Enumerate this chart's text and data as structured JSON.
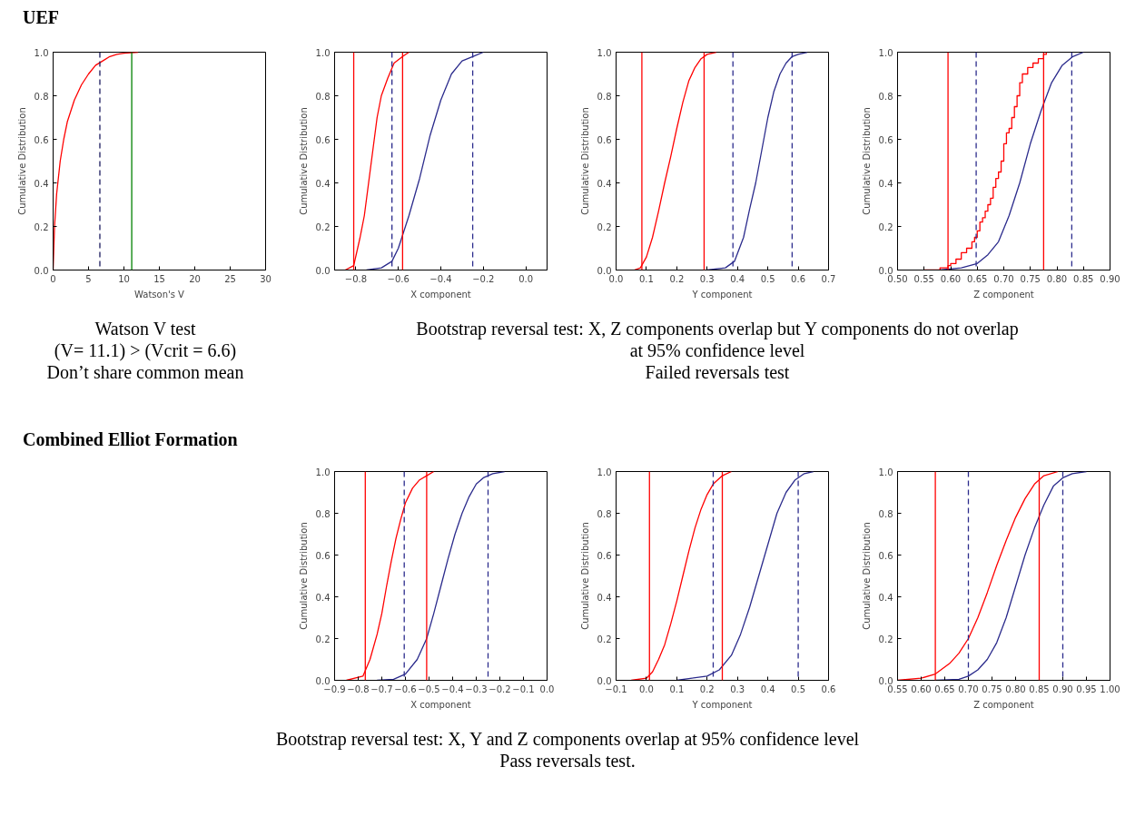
{
  "chart_data": [
    {
      "type": "other",
      "title": "UEF"
    },
    {
      "type": "line",
      "xlabel": "Watson's V",
      "ylabel": "Cumulative Distribution",
      "xlim": [
        0,
        30
      ],
      "ylim": [
        0,
        1
      ],
      "xticks": [
        0,
        5,
        10,
        15,
        20,
        25,
        30
      ],
      "yticks": [
        {
          "value": 0,
          "label": "0.0"
        },
        {
          "value": 0.2,
          "label": "0.2"
        },
        {
          "value": 0.4,
          "label": "0.4"
        },
        {
          "value": 0.6,
          "label": "0.6"
        },
        {
          "value": 0.8,
          "label": "0.8"
        },
        {
          "value": 1,
          "label": "1.0"
        }
      ],
      "series": [
        {
          "color": "#ff0000",
          "x": [
            0,
            0.2,
            0.5,
            1,
            1.5,
            2,
            3,
            4,
            5,
            6,
            7,
            8,
            9,
            10,
            12
          ],
          "values": [
            0,
            0.2,
            0.35,
            0.5,
            0.6,
            0.68,
            0.78,
            0.85,
            0.9,
            0.94,
            0.96,
            0.98,
            0.99,
            0.995,
            1
          ]
        }
      ],
      "ref_lines": [
        {
          "axis": "x",
          "value": 6.6,
          "color": "#1a1a5e",
          "line_style": "dashed"
        },
        {
          "axis": "x",
          "value": 11.1,
          "color": "#008000",
          "line_style": "solid"
        }
      ]
    },
    {
      "type": "line",
      "xlabel": "X component",
      "ylabel": "Cumulative Distribution",
      "xlim": [
        -0.9,
        0.1
      ],
      "ylim": [
        0,
        1
      ],
      "xticks": [
        {
          "value": -0.8,
          "label": "−0.8"
        },
        {
          "value": -0.6,
          "label": "−0.6"
        },
        {
          "value": -0.4,
          "label": "−0.4"
        },
        {
          "value": -0.2,
          "label": "−0.2"
        },
        {
          "value": 0,
          "label": "0.0"
        }
      ],
      "yticks": [
        {
          "value": 0,
          "label": "0.0"
        },
        {
          "value": 0.2,
          "label": "0.2"
        },
        {
          "value": 0.4,
          "label": "0.4"
        },
        {
          "value": 0.6,
          "label": "0.6"
        },
        {
          "value": 0.8,
          "label": "0.8"
        },
        {
          "value": 1,
          "label": "1.0"
        }
      ],
      "series": [
        {
          "color": "#ff0000",
          "x": [
            -0.85,
            -0.81,
            -0.78,
            -0.76,
            -0.74,
            -0.72,
            -0.7,
            -0.68,
            -0.65,
            -0.62,
            -0.58,
            -0.55
          ],
          "values": [
            0,
            0.02,
            0.15,
            0.25,
            0.4,
            0.55,
            0.7,
            0.8,
            0.88,
            0.95,
            0.98,
            1
          ]
        },
        {
          "color": "#2b2b8c",
          "x": [
            -0.75,
            -0.68,
            -0.63,
            -0.6,
            -0.55,
            -0.5,
            -0.45,
            -0.4,
            -0.35,
            -0.3,
            -0.25,
            -0.2
          ],
          "values": [
            0,
            0.01,
            0.04,
            0.1,
            0.25,
            0.42,
            0.62,
            0.78,
            0.9,
            0.96,
            0.98,
            1
          ]
        }
      ],
      "ref_lines": [
        {
          "axis": "x",
          "value": -0.81,
          "color": "#ff0000",
          "line_style": "solid"
        },
        {
          "axis": "x",
          "value": -0.58,
          "color": "#ff0000",
          "line_style": "solid"
        },
        {
          "axis": "x",
          "value": -0.63,
          "color": "#2b2b8c",
          "line_style": "dashed"
        },
        {
          "axis": "x",
          "value": -0.25,
          "color": "#2b2b8c",
          "line_style": "dashed"
        }
      ]
    },
    {
      "type": "line",
      "xlabel": "Y component",
      "ylabel": "Cumulative Distribution",
      "xlim": [
        0,
        0.7
      ],
      "ylim": [
        0,
        1
      ],
      "xticks": [
        {
          "value": 0,
          "label": "0.0"
        },
        0.1,
        0.2,
        0.3,
        0.4,
        0.5,
        0.6,
        0.7
      ],
      "yticks": [
        {
          "value": 0,
          "label": "0.0"
        },
        {
          "value": 0.2,
          "label": "0.2"
        },
        {
          "value": 0.4,
          "label": "0.4"
        },
        {
          "value": 0.6,
          "label": "0.6"
        },
        {
          "value": 0.8,
          "label": "0.8"
        },
        {
          "value": 1,
          "label": "1.0"
        }
      ],
      "series": [
        {
          "color": "#ff0000",
          "x": [
            0.06,
            0.08,
            0.1,
            0.12,
            0.14,
            0.16,
            0.18,
            0.2,
            0.22,
            0.24,
            0.26,
            0.28,
            0.3,
            0.33
          ],
          "values": [
            0,
            0.01,
            0.06,
            0.15,
            0.27,
            0.4,
            0.52,
            0.65,
            0.77,
            0.87,
            0.93,
            0.97,
            0.99,
            1
          ]
        },
        {
          "color": "#2b2b8c",
          "x": [
            0.3,
            0.36,
            0.39,
            0.42,
            0.44,
            0.46,
            0.48,
            0.5,
            0.52,
            0.54,
            0.56,
            0.58,
            0.6,
            0.63
          ],
          "values": [
            0,
            0.01,
            0.04,
            0.15,
            0.28,
            0.4,
            0.55,
            0.7,
            0.82,
            0.9,
            0.95,
            0.98,
            0.99,
            1
          ]
        }
      ],
      "ref_lines": [
        {
          "axis": "x",
          "value": 0.085,
          "color": "#ff0000",
          "line_style": "solid"
        },
        {
          "axis": "x",
          "value": 0.29,
          "color": "#ff0000",
          "line_style": "solid"
        },
        {
          "axis": "x",
          "value": 0.385,
          "color": "#2b2b8c",
          "line_style": "dashed"
        },
        {
          "axis": "x",
          "value": 0.58,
          "color": "#2b2b8c",
          "line_style": "dashed"
        }
      ]
    },
    {
      "type": "line",
      "xlabel": "Z component",
      "ylabel": "Cumulative Distribution",
      "xlim": [
        0.5,
        0.9
      ],
      "ylim": [
        0,
        1
      ],
      "xticks": [
        {
          "value": 0.5,
          "label": "0.50"
        },
        0.55,
        {
          "value": 0.6,
          "label": "0.60"
        },
        0.65,
        {
          "value": 0.7,
          "label": "0.70"
        },
        0.75,
        {
          "value": 0.8,
          "label": "0.80"
        },
        0.85,
        {
          "value": 0.9,
          "label": "0.90"
        }
      ],
      "yticks": [
        {
          "value": 0,
          "label": "0.0"
        },
        {
          "value": 0.2,
          "label": "0.2"
        },
        {
          "value": 0.4,
          "label": "0.4"
        },
        {
          "value": 0.6,
          "label": "0.6"
        },
        {
          "value": 0.8,
          "label": "0.8"
        },
        {
          "value": 1,
          "label": "1.0"
        }
      ],
      "series": [
        {
          "type": "step",
          "color": "#ff0000",
          "x": [
            0.55,
            0.58,
            0.595,
            0.6,
            0.61,
            0.62,
            0.63,
            0.64,
            0.645,
            0.65,
            0.655,
            0.66,
            0.665,
            0.67,
            0.675,
            0.68,
            0.685,
            0.69,
            0.695,
            0.7,
            0.705,
            0.71,
            0.715,
            0.72,
            0.725,
            0.73,
            0.735,
            0.745,
            0.755,
            0.765,
            0.775,
            0.78
          ],
          "values": [
            0,
            0.01,
            0.02,
            0.03,
            0.05,
            0.08,
            0.1,
            0.13,
            0.15,
            0.18,
            0.22,
            0.24,
            0.27,
            0.3,
            0.33,
            0.38,
            0.42,
            0.45,
            0.5,
            0.58,
            0.63,
            0.65,
            0.7,
            0.75,
            0.8,
            0.86,
            0.9,
            0.93,
            0.95,
            0.97,
            0.99,
            1
          ]
        },
        {
          "color": "#2b2b8c",
          "x": [
            0.58,
            0.62,
            0.65,
            0.67,
            0.69,
            0.71,
            0.73,
            0.75,
            0.77,
            0.79,
            0.81,
            0.83,
            0.85
          ],
          "values": [
            0,
            0.01,
            0.03,
            0.07,
            0.13,
            0.25,
            0.4,
            0.58,
            0.73,
            0.86,
            0.94,
            0.98,
            1
          ]
        }
      ],
      "ref_lines": [
        {
          "axis": "x",
          "value": 0.595,
          "color": "#ff0000",
          "line_style": "solid"
        },
        {
          "axis": "x",
          "value": 0.775,
          "color": "#ff0000",
          "line_style": "solid"
        },
        {
          "axis": "x",
          "value": 0.648,
          "color": "#2b2b8c",
          "line_style": "dashed"
        },
        {
          "axis": "x",
          "value": 0.828,
          "color": "#2b2b8c",
          "line_style": "dashed"
        }
      ]
    },
    {
      "type": "other",
      "annotations": [
        "Watson V test",
        "(V= 11.1) > (Vcrit = 6.6)",
        "Don’t share common mean"
      ]
    },
    {
      "type": "other",
      "annotations": [
        "Bootstrap reversal test: X, Z components overlap but Y components do not overlap",
        "at 95% confidence level",
        "Failed reversals test"
      ]
    },
    {
      "type": "other",
      "title": "Combined Elliot Formation"
    },
    {
      "type": "line",
      "xlabel": "X component",
      "ylabel": "Cumulative Distribution",
      "xlim": [
        -0.9,
        0
      ],
      "ylim": [
        0,
        1
      ],
      "xticks": [
        {
          "value": -0.9,
          "label": "−0.9"
        },
        {
          "value": -0.8,
          "label": "−0.8"
        },
        {
          "value": -0.7,
          "label": "−0.7"
        },
        {
          "value": -0.6,
          "label": "−0.6"
        },
        {
          "value": -0.5,
          "label": "−0.5"
        },
        {
          "value": -0.4,
          "label": "−0.4"
        },
        {
          "value": -0.3,
          "label": "−0.3"
        },
        {
          "value": -0.2,
          "label": "−0.2"
        },
        {
          "value": -0.1,
          "label": "−0.1"
        },
        {
          "value": 0,
          "label": "0.0"
        }
      ],
      "yticks": [
        {
          "value": 0,
          "label": "0.0"
        },
        {
          "value": 0.2,
          "label": "0.2"
        },
        {
          "value": 0.4,
          "label": "0.4"
        },
        {
          "value": 0.6,
          "label": "0.6"
        },
        {
          "value": 0.8,
          "label": "0.8"
        },
        {
          "value": 1,
          "label": "1.0"
        }
      ],
      "series": [
        {
          "color": "#ff0000",
          "x": [
            -0.85,
            -0.78,
            -0.75,
            -0.72,
            -0.7,
            -0.68,
            -0.66,
            -0.64,
            -0.62,
            -0.6,
            -0.57,
            -0.54,
            -0.51,
            -0.48
          ],
          "values": [
            0,
            0.02,
            0.1,
            0.22,
            0.32,
            0.45,
            0.57,
            0.68,
            0.77,
            0.85,
            0.92,
            0.96,
            0.98,
            1
          ]
        },
        {
          "color": "#2b2b8c",
          "x": [
            -0.72,
            -0.65,
            -0.6,
            -0.55,
            -0.51,
            -0.48,
            -0.45,
            -0.42,
            -0.39,
            -0.36,
            -0.33,
            -0.3,
            -0.27,
            -0.23,
            -0.18
          ],
          "values": [
            0,
            0.005,
            0.03,
            0.1,
            0.2,
            0.32,
            0.45,
            0.58,
            0.7,
            0.8,
            0.88,
            0.94,
            0.97,
            0.99,
            1
          ]
        }
      ],
      "ref_lines": [
        {
          "axis": "x",
          "value": -0.77,
          "color": "#ff0000",
          "line_style": "solid"
        },
        {
          "axis": "x",
          "value": -0.51,
          "color": "#ff0000",
          "line_style": "solid"
        },
        {
          "axis": "x",
          "value": -0.605,
          "color": "#2b2b8c",
          "line_style": "dashed"
        },
        {
          "axis": "x",
          "value": -0.25,
          "color": "#2b2b8c",
          "line_style": "dashed"
        }
      ]
    },
    {
      "type": "line",
      "xlabel": "Y component",
      "ylabel": "Cumulative Distribution",
      "xlim": [
        -0.1,
        0.6
      ],
      "ylim": [
        0,
        1
      ],
      "xticks": [
        {
          "value": -0.1,
          "label": "−0.1"
        },
        {
          "value": 0,
          "label": "0.0"
        },
        0.1,
        0.2,
        0.3,
        0.4,
        0.5,
        0.6
      ],
      "yticks": [
        {
          "value": 0,
          "label": "0.0"
        },
        {
          "value": 0.2,
          "label": "0.2"
        },
        {
          "value": 0.4,
          "label": "0.4"
        },
        {
          "value": 0.6,
          "label": "0.6"
        },
        {
          "value": 0.8,
          "label": "0.8"
        },
        {
          "value": 1,
          "label": "1.0"
        }
      ],
      "series": [
        {
          "color": "#ff0000",
          "x": [
            -0.05,
            0,
            0.02,
            0.04,
            0.06,
            0.08,
            0.1,
            0.12,
            0.14,
            0.16,
            0.18,
            0.2,
            0.22,
            0.25,
            0.28
          ],
          "values": [
            0,
            0.01,
            0.04,
            0.1,
            0.17,
            0.27,
            0.38,
            0.5,
            0.62,
            0.73,
            0.82,
            0.89,
            0.94,
            0.98,
            1
          ]
        },
        {
          "color": "#2b2b8c",
          "x": [
            0.1,
            0.2,
            0.24,
            0.28,
            0.31,
            0.34,
            0.37,
            0.4,
            0.43,
            0.46,
            0.49,
            0.52,
            0.55
          ],
          "values": [
            0,
            0.02,
            0.05,
            0.12,
            0.22,
            0.35,
            0.5,
            0.65,
            0.8,
            0.9,
            0.96,
            0.99,
            1
          ]
        }
      ],
      "ref_lines": [
        {
          "axis": "x",
          "value": 0.01,
          "color": "#ff0000",
          "line_style": "solid"
        },
        {
          "axis": "x",
          "value": 0.25,
          "color": "#ff0000",
          "line_style": "solid"
        },
        {
          "axis": "x",
          "value": 0.22,
          "color": "#2b2b8c",
          "line_style": "dashed"
        },
        {
          "axis": "x",
          "value": 0.5,
          "color": "#2b2b8c",
          "line_style": "dashed"
        }
      ]
    },
    {
      "type": "line",
      "xlabel": "Z component",
      "ylabel": "Cumulative Distribution",
      "xlim": [
        0.55,
        1
      ],
      "ylim": [
        0,
        1
      ],
      "xticks": [
        0.55,
        {
          "value": 0.6,
          "label": "0.60"
        },
        0.65,
        {
          "value": 0.7,
          "label": "0.70"
        },
        0.75,
        {
          "value": 0.8,
          "label": "0.80"
        },
        0.85,
        {
          "value": 0.9,
          "label": "0.90"
        },
        0.95,
        {
          "value": 1,
          "label": "1.00"
        }
      ],
      "yticks": [
        {
          "value": 0,
          "label": "0.0"
        },
        {
          "value": 0.2,
          "label": "0.2"
        },
        {
          "value": 0.4,
          "label": "0.4"
        },
        {
          "value": 0.6,
          "label": "0.6"
        },
        {
          "value": 0.8,
          "label": "0.8"
        },
        {
          "value": 1,
          "label": "1.0"
        }
      ],
      "series": [
        {
          "color": "#ff0000",
          "x": [
            0.55,
            0.6,
            0.63,
            0.66,
            0.68,
            0.7,
            0.72,
            0.74,
            0.76,
            0.78,
            0.8,
            0.82,
            0.84,
            0.86,
            0.89
          ],
          "values": [
            0,
            0.01,
            0.03,
            0.08,
            0.13,
            0.2,
            0.3,
            0.42,
            0.55,
            0.67,
            0.78,
            0.87,
            0.94,
            0.98,
            1
          ]
        },
        {
          "color": "#2b2b8c",
          "x": [
            0.63,
            0.68,
            0.7,
            0.72,
            0.74,
            0.76,
            0.78,
            0.8,
            0.82,
            0.84,
            0.86,
            0.88,
            0.9,
            0.92,
            0.95
          ],
          "values": [
            0,
            0.005,
            0.02,
            0.05,
            0.1,
            0.18,
            0.3,
            0.45,
            0.6,
            0.73,
            0.84,
            0.93,
            0.97,
            0.99,
            1
          ]
        }
      ],
      "ref_lines": [
        {
          "axis": "x",
          "value": 0.63,
          "color": "#ff0000",
          "line_style": "solid"
        },
        {
          "axis": "x",
          "value": 0.85,
          "color": "#ff0000",
          "line_style": "solid"
        },
        {
          "axis": "x",
          "value": 0.7,
          "color": "#2b2b8c",
          "line_style": "dashed"
        },
        {
          "axis": "x",
          "value": 0.9,
          "color": "#2b2b8c",
          "line_style": "dashed"
        }
      ]
    },
    {
      "type": "other",
      "annotations": [
        "Bootstrap reversal test: X, Y and Z components overlap at 95% confidence level",
        "Pass reversals test."
      ]
    }
  ]
}
